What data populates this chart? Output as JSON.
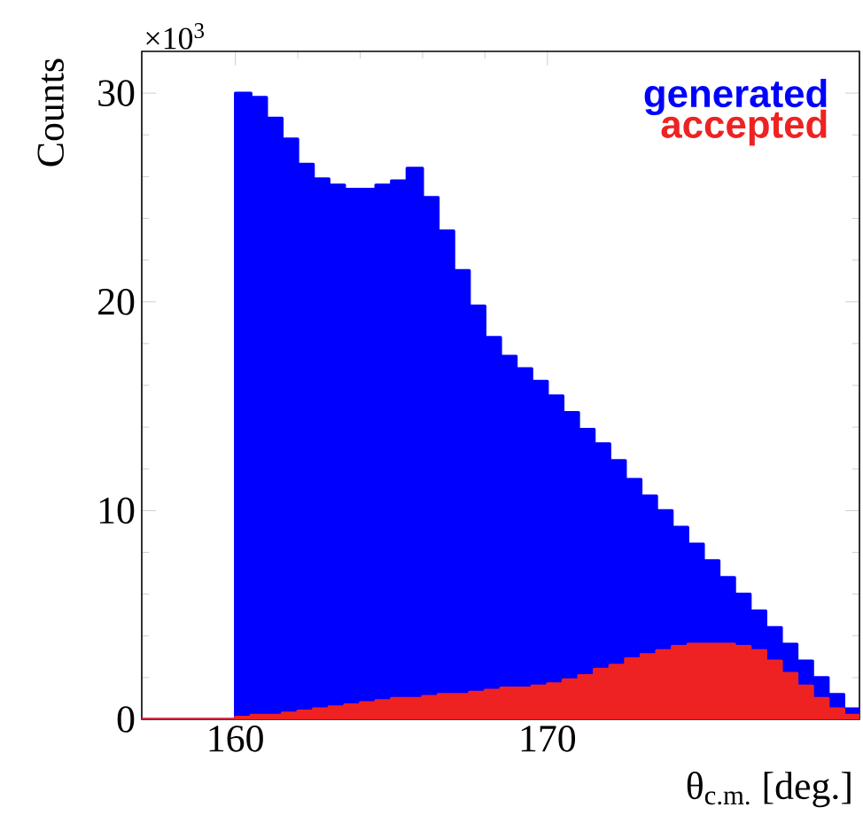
{
  "chart_data": {
    "type": "histogram",
    "xlabel": "θ$_{c.m.}$ [deg.]",
    "ylabel": "Counts",
    "annotations": [
      "×10$^{3}$"
    ],
    "bins": [
      157,
      157.5,
      158,
      158.5,
      159,
      159.5,
      160,
      160.5,
      161,
      161.5,
      162,
      162.5,
      163,
      163.5,
      164,
      164.5,
      165,
      165.5,
      166,
      166.5,
      167,
      167.5,
      168,
      168.5,
      169,
      169.5,
      170,
      170.5,
      171,
      171.5,
      172,
      172.5,
      173,
      173.5,
      174,
      174.5,
      175,
      175.5,
      176,
      176.5,
      177,
      177.5,
      178,
      178.5,
      179,
      179.5,
      180
    ],
    "series": [
      {
        "name": "generated",
        "color": "#0000ff",
        "values": [
          0,
          0,
          0,
          0,
          0,
          0,
          30.0,
          29.8,
          28.8,
          27.8,
          26.6,
          25.9,
          25.6,
          25.4,
          25.4,
          25.6,
          25.8,
          26.4,
          25.0,
          23.4,
          21.5,
          19.8,
          18.3,
          17.4,
          16.8,
          16.2,
          15.5,
          14.7,
          13.9,
          13.2,
          12.4,
          11.5,
          10.7,
          10.0,
          9.2,
          8.4,
          7.6,
          6.8,
          6.0,
          5.2,
          4.4,
          3.6,
          2.8,
          2.0,
          1.2,
          0.5
        ]
      },
      {
        "name": "accepted",
        "color": "#ee2222",
        "values": [
          0,
          0,
          0,
          0,
          0,
          0,
          0.1,
          0.2,
          0.2,
          0.3,
          0.4,
          0.5,
          0.6,
          0.7,
          0.8,
          0.9,
          1.0,
          1.0,
          1.1,
          1.2,
          1.2,
          1.3,
          1.4,
          1.5,
          1.5,
          1.6,
          1.7,
          1.9,
          2.1,
          2.4,
          2.6,
          2.9,
          3.1,
          3.3,
          3.5,
          3.6,
          3.6,
          3.6,
          3.5,
          3.3,
          2.8,
          2.2,
          1.6,
          1.0,
          0.5,
          0.2
        ]
      }
    ],
    "xlim": [
      157,
      180
    ],
    "ylim": [
      0,
      32
    ],
    "xticks": [
      160,
      170
    ],
    "yticks": [
      0,
      10,
      20,
      30
    ],
    "legend": "top right"
  }
}
